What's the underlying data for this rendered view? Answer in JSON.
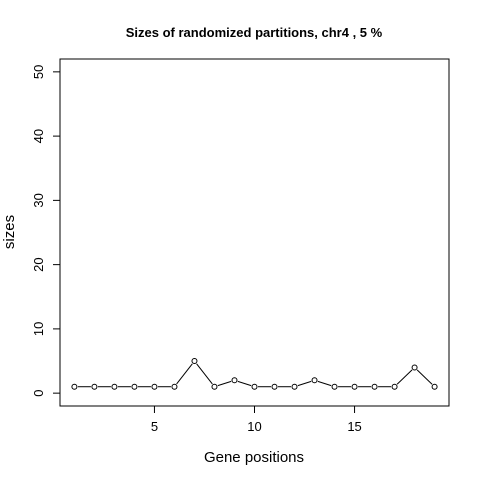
{
  "chart_data": {
    "type": "line",
    "title": "Sizes of randomized partitions, chr4 , 5 %",
    "xlabel": "Gene positions",
    "ylabel": "sizes",
    "x": [
      1,
      2,
      3,
      4,
      5,
      6,
      7,
      8,
      9,
      10,
      11,
      12,
      13,
      14,
      15,
      16,
      17,
      18,
      19
    ],
    "values": [
      1,
      1,
      1,
      1,
      1,
      1,
      5,
      1,
      2,
      1,
      1,
      1,
      2,
      1,
      1,
      1,
      1,
      4,
      1
    ],
    "xlim": [
      0.28,
      19.72
    ],
    "ylim": [
      -2,
      52
    ],
    "xticks": [
      5,
      10,
      15
    ],
    "yticks": [
      0,
      10,
      20,
      30,
      40,
      50
    ],
    "marker": "open-circle",
    "line_color": "#000000",
    "grid": false,
    "legend": "none"
  }
}
